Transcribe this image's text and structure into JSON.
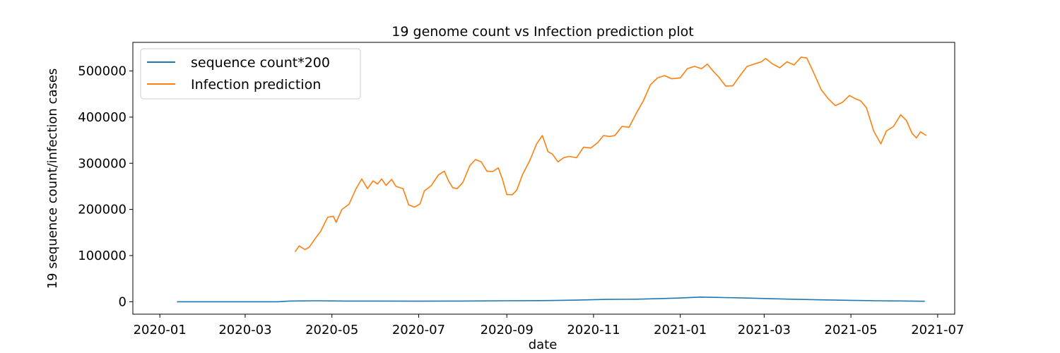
{
  "chart_data": {
    "type": "line",
    "title": "19 genome count vs Infection prediction plot",
    "xlabel": "date",
    "ylabel": "19 sequence count/infection cases",
    "xlim": [
      "2019-12-13",
      "2021-07-13"
    ],
    "ylim": [
      -27000,
      562000
    ],
    "x_ticks": [
      "2020-01-01",
      "2020-03-01",
      "2020-05-01",
      "2020-07-01",
      "2020-09-01",
      "2020-11-01",
      "2021-01-01",
      "2021-03-01",
      "2021-05-01",
      "2021-07-01"
    ],
    "x_tick_labels": [
      "2020-01",
      "2020-03",
      "2020-05",
      "2020-07",
      "2020-09",
      "2020-11",
      "2021-01",
      "2021-03",
      "2021-05",
      "2021-07"
    ],
    "y_ticks": [
      0,
      100000,
      200000,
      300000,
      400000,
      500000
    ],
    "y_tick_labels": [
      "0",
      "100000",
      "200000",
      "300000",
      "400000",
      "500000"
    ],
    "grid": false,
    "legend_position": "top-left",
    "series": [
      {
        "name": "sequence count*200",
        "color": "#1f77b4",
        "points": [
          [
            "2020-01-13",
            0
          ],
          [
            "2020-02-15",
            0
          ],
          [
            "2020-03-15",
            0
          ],
          [
            "2020-03-24",
            0
          ],
          [
            "2020-04-01",
            1500
          ],
          [
            "2020-04-20",
            2000
          ],
          [
            "2020-05-10",
            1500
          ],
          [
            "2020-06-01",
            1500
          ],
          [
            "2020-07-01",
            1200
          ],
          [
            "2020-08-01",
            1500
          ],
          [
            "2020-09-01",
            2000
          ],
          [
            "2020-10-01",
            2500
          ],
          [
            "2020-10-20",
            3500
          ],
          [
            "2020-11-10",
            5000
          ],
          [
            "2020-12-01",
            5500
          ],
          [
            "2020-12-20",
            7000
          ],
          [
            "2021-01-01",
            8000
          ],
          [
            "2021-01-15",
            10000
          ],
          [
            "2021-02-01",
            9000
          ],
          [
            "2021-02-15",
            8000
          ],
          [
            "2021-03-01",
            7000
          ],
          [
            "2021-03-20",
            5500
          ],
          [
            "2021-04-10",
            4000
          ],
          [
            "2021-05-01",
            3000
          ],
          [
            "2021-05-20",
            2000
          ],
          [
            "2021-06-10",
            1500
          ],
          [
            "2021-06-22",
            1000
          ]
        ]
      },
      {
        "name": "Infection prediction",
        "color": "#ff7f0e",
        "points": [
          [
            "2020-04-05",
            108000
          ],
          [
            "2020-04-08",
            121000
          ],
          [
            "2020-04-12",
            113000
          ],
          [
            "2020-04-15",
            118000
          ],
          [
            "2020-04-20",
            140000
          ],
          [
            "2020-04-23",
            152000
          ],
          [
            "2020-04-28",
            183000
          ],
          [
            "2020-05-02",
            185000
          ],
          [
            "2020-05-04",
            172000
          ],
          [
            "2020-05-08",
            200000
          ],
          [
            "2020-05-13",
            211000
          ],
          [
            "2020-05-18",
            245000
          ],
          [
            "2020-05-22",
            266000
          ],
          [
            "2020-05-26",
            245000
          ],
          [
            "2020-05-30",
            262000
          ],
          [
            "2020-06-02",
            255000
          ],
          [
            "2020-06-05",
            266000
          ],
          [
            "2020-06-08",
            252000
          ],
          [
            "2020-06-12",
            265000
          ],
          [
            "2020-06-15",
            250000
          ],
          [
            "2020-06-20",
            245000
          ],
          [
            "2020-06-24",
            210000
          ],
          [
            "2020-06-28",
            205000
          ],
          [
            "2020-07-02",
            212000
          ],
          [
            "2020-07-05",
            240000
          ],
          [
            "2020-07-10",
            252000
          ],
          [
            "2020-07-15",
            275000
          ],
          [
            "2020-07-19",
            283000
          ],
          [
            "2020-07-22",
            262000
          ],
          [
            "2020-07-25",
            247000
          ],
          [
            "2020-07-28",
            245000
          ],
          [
            "2020-08-01",
            258000
          ],
          [
            "2020-08-06",
            295000
          ],
          [
            "2020-08-10",
            308000
          ],
          [
            "2020-08-14",
            303000
          ],
          [
            "2020-08-18",
            283000
          ],
          [
            "2020-08-22",
            282000
          ],
          [
            "2020-08-26",
            290000
          ],
          [
            "2020-08-29",
            265000
          ],
          [
            "2020-09-01",
            232000
          ],
          [
            "2020-09-05",
            232000
          ],
          [
            "2020-09-08",
            242000
          ],
          [
            "2020-09-12",
            275000
          ],
          [
            "2020-09-17",
            305000
          ],
          [
            "2020-09-22",
            342000
          ],
          [
            "2020-09-26",
            360000
          ],
          [
            "2020-09-30",
            325000
          ],
          [
            "2020-10-03",
            320000
          ],
          [
            "2020-10-07",
            303000
          ],
          [
            "2020-10-11",
            312000
          ],
          [
            "2020-10-15",
            315000
          ],
          [
            "2020-10-20",
            312000
          ],
          [
            "2020-10-25",
            335000
          ],
          [
            "2020-10-30",
            333000
          ],
          [
            "2020-11-04",
            345000
          ],
          [
            "2020-11-08",
            360000
          ],
          [
            "2020-11-12",
            358000
          ],
          [
            "2020-11-16",
            360000
          ],
          [
            "2020-11-21",
            380000
          ],
          [
            "2020-11-26",
            378000
          ],
          [
            "2020-12-01",
            408000
          ],
          [
            "2020-12-06",
            435000
          ],
          [
            "2020-12-11",
            470000
          ],
          [
            "2020-12-16",
            485000
          ],
          [
            "2020-12-21",
            490000
          ],
          [
            "2020-12-26",
            483000
          ],
          [
            "2021-01-01",
            485000
          ],
          [
            "2021-01-06",
            505000
          ],
          [
            "2021-01-11",
            510000
          ],
          [
            "2021-01-16",
            505000
          ],
          [
            "2021-01-20",
            515000
          ],
          [
            "2021-01-24",
            500000
          ],
          [
            "2021-01-28",
            487000
          ],
          [
            "2021-02-02",
            467000
          ],
          [
            "2021-02-07",
            468000
          ],
          [
            "2021-02-12",
            490000
          ],
          [
            "2021-02-17",
            510000
          ],
          [
            "2021-02-22",
            515000
          ],
          [
            "2021-02-27",
            520000
          ],
          [
            "2021-03-02",
            527000
          ],
          [
            "2021-03-07",
            515000
          ],
          [
            "2021-03-12",
            507000
          ],
          [
            "2021-03-17",
            520000
          ],
          [
            "2021-03-22",
            513000
          ],
          [
            "2021-03-27",
            530000
          ],
          [
            "2021-03-31",
            528000
          ],
          [
            "2021-04-05",
            495000
          ],
          [
            "2021-04-10",
            460000
          ],
          [
            "2021-04-15",
            440000
          ],
          [
            "2021-04-20",
            425000
          ],
          [
            "2021-04-25",
            432000
          ],
          [
            "2021-04-30",
            447000
          ],
          [
            "2021-05-04",
            440000
          ],
          [
            "2021-05-08",
            435000
          ],
          [
            "2021-05-12",
            420000
          ],
          [
            "2021-05-17",
            370000
          ],
          [
            "2021-05-22",
            342000
          ],
          [
            "2021-05-26",
            370000
          ],
          [
            "2021-05-31",
            380000
          ],
          [
            "2021-06-05",
            405000
          ],
          [
            "2021-06-09",
            393000
          ],
          [
            "2021-06-13",
            365000
          ],
          [
            "2021-06-16",
            355000
          ],
          [
            "2021-06-19",
            368000
          ],
          [
            "2021-06-23",
            360000
          ]
        ]
      }
    ]
  }
}
